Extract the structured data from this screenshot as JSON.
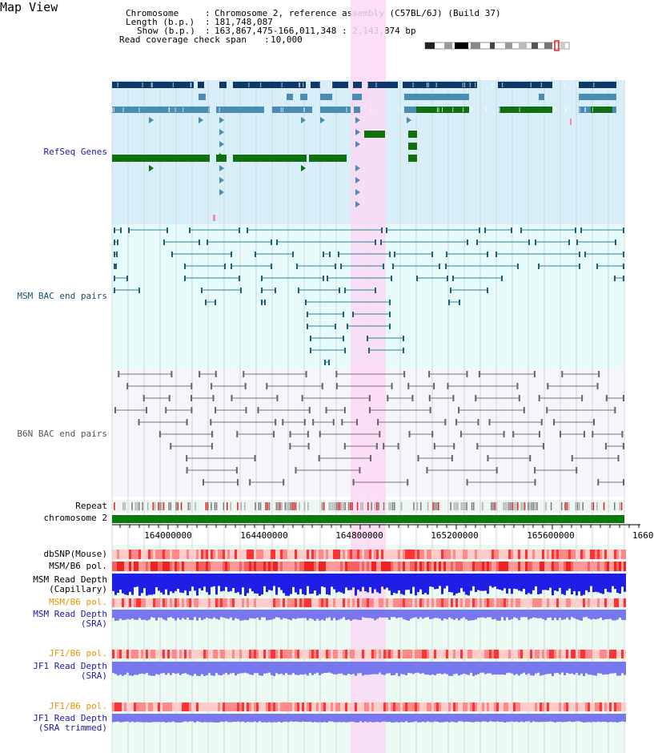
{
  "page": {
    "title": "Map View"
  },
  "info": {
    "chromosome_key": "Chromosome",
    "chromosome_value": "Chromosome 2, reference assembly (C57BL/6J) (Build 37)",
    "length_key": "Length (b.p.)",
    "length_value": "181,748,087",
    "show_key": "Show (b.p.)",
    "show_value": "163,867,475-166,011,348 : 2,143,874 bp",
    "coverage_key": "Read coverage check span",
    "coverage_value": "10,000"
  },
  "tracks": {
    "refseq": "RefSeq Genes",
    "msm_bac": "MSM BAC end pairs",
    "b6n_bac": "B6N BAC end pairs",
    "repeat": "Repeat",
    "chromosome": "chromosome 2",
    "dbsnp": "dbSNP(Mouse)",
    "msm_b6_pol_1": "MSM/B6 pol.",
    "msm_read_depth_cap_1": "MSM Read Depth",
    "msm_read_depth_cap_2": "(Capillary)",
    "msm_b6_pol_2": "MSM/B6 pol.",
    "msm_read_depth_sra_1": "MSM Read Depth",
    "msm_read_depth_sra_2": "(SRA)",
    "jf1_b6_pol_1": "JF1/B6 pol.",
    "jf1_read_depth_sra_1": "JF1 Read Depth",
    "jf1_read_depth_sra_2": "(SRA)",
    "jf1_b6_pol_2": "JF1/B6 pol.",
    "jf1_read_depth_trim_1": "JF1 Read Depth",
    "jf1_read_depth_trim_2": "(SRA trimmed)"
  },
  "axis": {
    "ticks": [
      "164000000",
      "164400000",
      "164800000",
      "165200000",
      "165600000",
      "1660"
    ]
  },
  "colors": {
    "highlight": "#fbd9f4",
    "refseq_bg": "#d8eef8",
    "dark_navy": "#0e3868",
    "steel_blue": "#4a8db4",
    "dark_green": "#0f7010",
    "chromosome_bar": "#0a7a0a",
    "depth_blue": "#1e1ee6",
    "depth_light_blue": "#7777ee"
  }
}
